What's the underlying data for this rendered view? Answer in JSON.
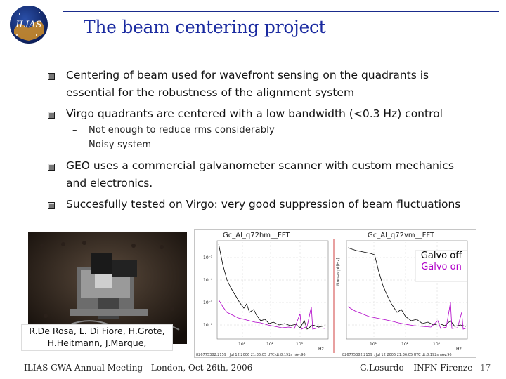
{
  "header": {
    "logo_text": "ILIAS",
    "title": "The beam centering project"
  },
  "bullets": [
    {
      "line1": "Centering of beam used for wavefront sensing on the quadrants is",
      "line2": "essential for the robustness of the alignment system"
    },
    {
      "line1": "Virgo quadrants are centered with a low bandwidth (<0.3 Hz) control",
      "sub": [
        "Not enough to reduce rms considerably",
        "Noisy system"
      ]
    },
    {
      "line1": "GEO uses a commercial galvanometer scanner with custom mechanics",
      "line2": "and electronics."
    },
    {
      "line1": "Succesfully tested on Virgo: very good suppression of beam fluctuations"
    }
  ],
  "sub_dash": "–",
  "plot": {
    "left_title": "Gc_Al_q72hm__FFT",
    "right_title": "Gc_Al_q72vm__FFT",
    "ylabel": "Nonsorpt(Hz)",
    "ytick_labels": [
      "10⁻³",
      "10⁻⁴",
      "10⁻⁵",
      "10⁻⁶"
    ],
    "xtick_labels": [
      "10¹",
      "10²",
      "10³"
    ],
    "x_unit": "Hz",
    "left_caption": "826775382.2159 : Jul 12 2006 21:36:05 UTC dt:8.192s nAv:96",
    "right_caption": "826775382.2159 : Jul 12 2006 21:36:05 UTC dt:8.192s nAv:96",
    "colors": {
      "galvo_off": "#000000",
      "galvo_on": "#b000c8"
    }
  },
  "legend": {
    "off_label": "Galvo off",
    "on_label": "Galvo on",
    "off_color": "#000000",
    "on_color": "#b000c8"
  },
  "authors": {
    "line1": "R.De Rosa, L. Di Fiore, H.Grote,",
    "line2": "H.Heitmann, J.Marque,"
  },
  "footer": {
    "left": "ILIAS GWA Annual Meeting - London, Oct 26th, 2006",
    "right": "G.Losurdo – INFN Firenze",
    "page": "17"
  }
}
